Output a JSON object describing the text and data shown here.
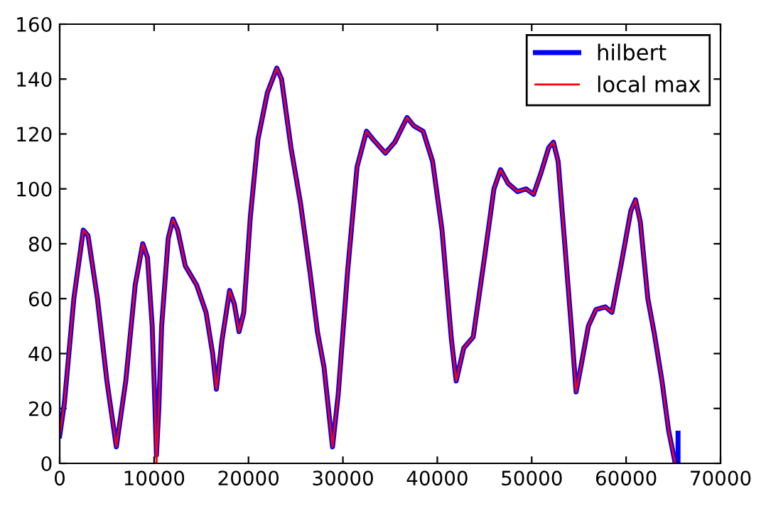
{
  "chart_data": {
    "type": "line",
    "xlim": [
      0,
      70000
    ],
    "ylim": [
      0,
      160
    ],
    "xticks": [
      0,
      10000,
      20000,
      30000,
      40000,
      50000,
      60000,
      70000
    ],
    "yticks": [
      0,
      20,
      40,
      60,
      80,
      100,
      120,
      140,
      160
    ],
    "grid": false,
    "legend": "top right",
    "line_style": "solid",
    "marker": "none",
    "series": [
      {
        "name": "hilbert",
        "color": "#0000ff",
        "x": [
          0,
          500,
          1500,
          2500,
          3000,
          4000,
          5000,
          6000,
          7000,
          8000,
          8800,
          9300,
          9800,
          10100,
          10250,
          10500,
          10800,
          11500,
          12000,
          12500,
          13300,
          14500,
          15500,
          16200,
          16600,
          17200,
          18000,
          18500,
          19000,
          19500,
          20200,
          21000,
          22000,
          23000,
          23500,
          24500,
          25500,
          26500,
          27300,
          28000,
          28900,
          29500,
          30500,
          31500,
          32500,
          33200,
          34500,
          35500,
          36800,
          37500,
          38500,
          39500,
          40500,
          41500,
          42000,
          42800,
          43800,
          45000,
          46000,
          46700,
          47500,
          48500,
          49400,
          50200,
          51000,
          51800,
          52300,
          52800,
          53500,
          54300,
          54700,
          55200,
          56000,
          56800,
          57800,
          58500,
          59500,
          60500,
          61000,
          61500,
          62300,
          63000,
          63800,
          64500,
          65200,
          65500,
          65500
        ],
        "values": [
          10,
          22,
          60,
          85,
          83,
          60,
          30,
          6,
          30,
          65,
          80,
          75,
          50,
          20,
          3,
          20,
          50,
          82,
          89,
          85,
          72,
          65,
          55,
          40,
          27,
          45,
          63,
          58,
          48,
          55,
          90,
          118,
          135,
          144,
          140,
          115,
          95,
          70,
          48,
          35,
          6,
          25,
          70,
          108,
          121,
          118,
          113,
          117,
          126,
          123,
          121,
          110,
          85,
          45,
          30,
          42,
          46,
          75,
          100,
          107,
          102,
          99,
          100,
          98,
          106,
          115,
          117,
          110,
          80,
          45,
          26,
          35,
          50,
          56,
          57,
          55,
          73,
          92,
          96,
          88,
          60,
          47,
          30,
          12,
          0,
          0,
          11
        ]
      },
      {
        "name": "local max",
        "color": "#ff0000",
        "x": [
          0,
          500,
          1500,
          2500,
          3000,
          4000,
          5000,
          6000,
          7000,
          8000,
          8800,
          9300,
          9800,
          10100,
          10250,
          10500,
          10800,
          11500,
          12000,
          12500,
          13300,
          14500,
          15500,
          16200,
          16600,
          17200,
          18000,
          18500,
          19000,
          19500,
          20200,
          21000,
          22000,
          23000,
          23500,
          24500,
          25500,
          26500,
          27300,
          28000,
          28900,
          29500,
          30500,
          31500,
          32500,
          33200,
          34500,
          35500,
          36800,
          37500,
          38500,
          39500,
          40500,
          41500,
          42000,
          42800,
          43800,
          45000,
          46000,
          46700,
          47500,
          48500,
          49400,
          50200,
          51000,
          51800,
          52300,
          52800,
          53500,
          54300,
          54700,
          55200,
          56000,
          56800,
          57800,
          58500,
          59500,
          60500,
          61000,
          61500,
          62300,
          63000,
          63800,
          64500,
          65200
        ],
        "values": [
          10,
          22,
          60,
          85,
          83,
          60,
          30,
          6,
          30,
          65,
          80,
          75,
          50,
          20,
          0,
          20,
          50,
          82,
          89,
          85,
          72,
          65,
          55,
          40,
          27,
          45,
          63,
          58,
          48,
          55,
          90,
          118,
          135,
          144,
          140,
          115,
          95,
          70,
          48,
          35,
          6,
          25,
          70,
          108,
          121,
          118,
          113,
          117,
          126,
          123,
          121,
          110,
          85,
          45,
          30,
          42,
          46,
          75,
          100,
          107,
          102,
          99,
          100,
          98,
          106,
          115,
          117,
          110,
          80,
          45,
          26,
          35,
          50,
          56,
          57,
          55,
          73,
          92,
          96,
          88,
          60,
          47,
          30,
          12,
          0
        ]
      }
    ]
  }
}
